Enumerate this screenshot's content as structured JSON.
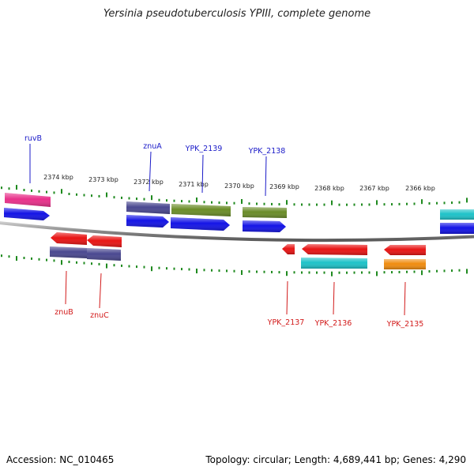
{
  "title": "Yersinia pseudotuberculosis YPIII, complete genome",
  "footer": {
    "accession": "Accession: NC_010465",
    "topology": "Topology: circular; Length: 4,689,441 bp; Genes: 4,290"
  },
  "colors": {
    "cds_blue": "#1414e6",
    "cds_red": "#e81414",
    "cog_pink": "#e8308a",
    "cog_slate": "#4a4890",
    "cog_olive": "#6a8c28",
    "cog_cyan": "#1ec2c8",
    "cog_orange": "#f08c10",
    "tick_green": "#1f8a1f",
    "backbone": "#8a8a8a"
  },
  "kbp_labels": [
    "2374 kbp",
    "2373 kbp",
    "2372 kbp",
    "2371 kbp",
    "2370 kbp",
    "2369 kbp",
    "2368 kbp",
    "2367 kbp",
    "2366 kbp"
  ],
  "top_gene_labels": [
    "ruvB",
    "znuA",
    "YPK_2139",
    "YPK_2138"
  ],
  "bottom_gene_labels": [
    "znuB",
    "znuC",
    "YPK_2137",
    "YPK_2136",
    "YPK_2135"
  ]
}
